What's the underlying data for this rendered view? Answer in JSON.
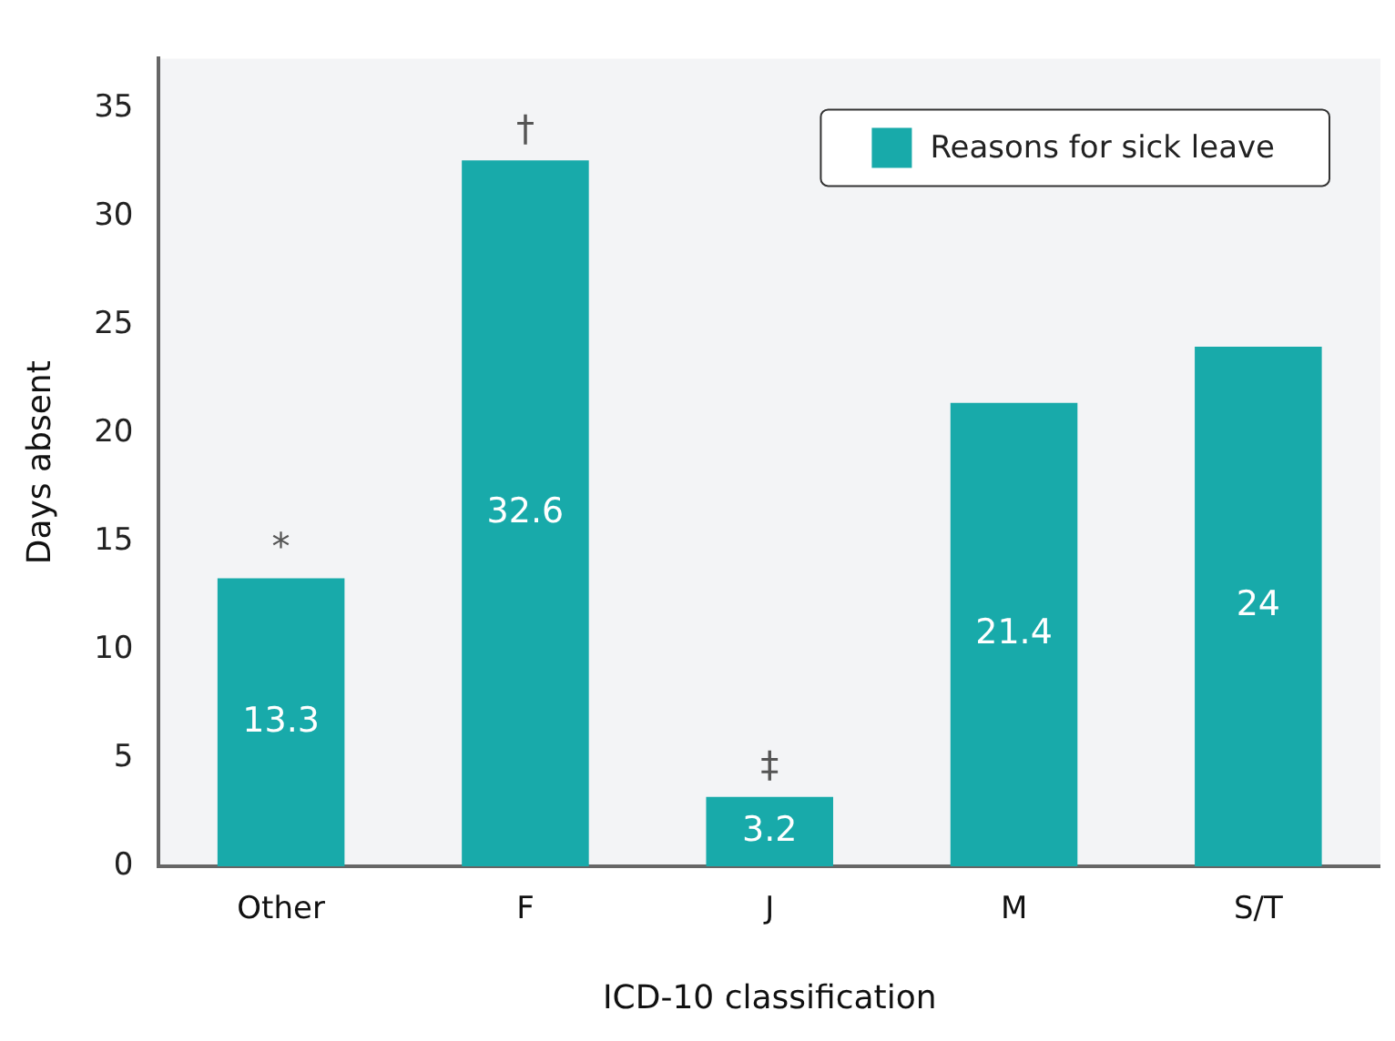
{
  "chart_data": {
    "type": "bar",
    "xlabel": "ICD-10 classification",
    "ylabel": "Days absent",
    "categories": [
      "Other",
      "F",
      "J",
      "M",
      "S/T"
    ],
    "series": [
      {
        "name": "Reasons for sick leave",
        "color": "#18aaaa",
        "values": [
          13.3,
          32.6,
          3.2,
          21.4,
          24
        ]
      }
    ],
    "ylim": [
      0,
      37.3
    ],
    "yticks": [
      0,
      5,
      10,
      15,
      20,
      25,
      30,
      35
    ],
    "grid": false,
    "legend": "top right",
    "data_labels": true,
    "annotations": [
      {
        "text": "*",
        "x": "Other",
        "y": 13.3
      },
      {
        "text": "†",
        "x": "F",
        "y": 32.6
      },
      {
        "text": "‡",
        "x": "J",
        "y": 3.2
      }
    ]
  }
}
